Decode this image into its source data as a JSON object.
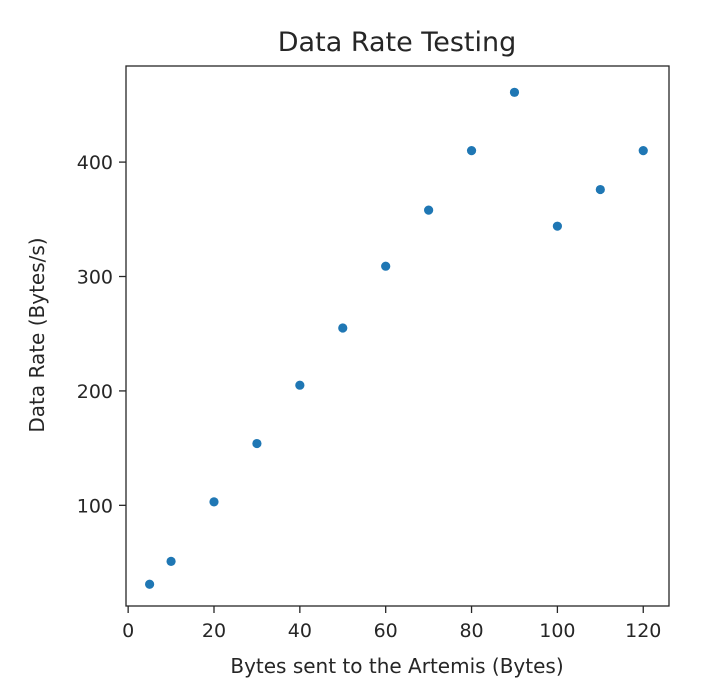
{
  "chart_data": {
    "type": "scatter",
    "title": "Data Rate Testing",
    "xlabel": "Bytes sent to the Artemis (Bytes)",
    "ylabel": "Data Rate (Bytes/s)",
    "xlim": [
      -0.5,
      126.0
    ],
    "ylim": [
      12,
      484
    ],
    "xticks": [
      0,
      20,
      40,
      60,
      80,
      100,
      120
    ],
    "yticks": [
      100,
      200,
      300,
      400
    ],
    "grid": false,
    "marker_color": "#1f77b4",
    "series": [
      {
        "x": [
          5,
          10,
          20,
          30,
          40,
          50,
          60,
          70,
          80,
          90,
          100,
          110,
          120
        ],
        "y": [
          31,
          51,
          103,
          154,
          205,
          255,
          309,
          358,
          410,
          461,
          344,
          376,
          410
        ]
      }
    ]
  }
}
